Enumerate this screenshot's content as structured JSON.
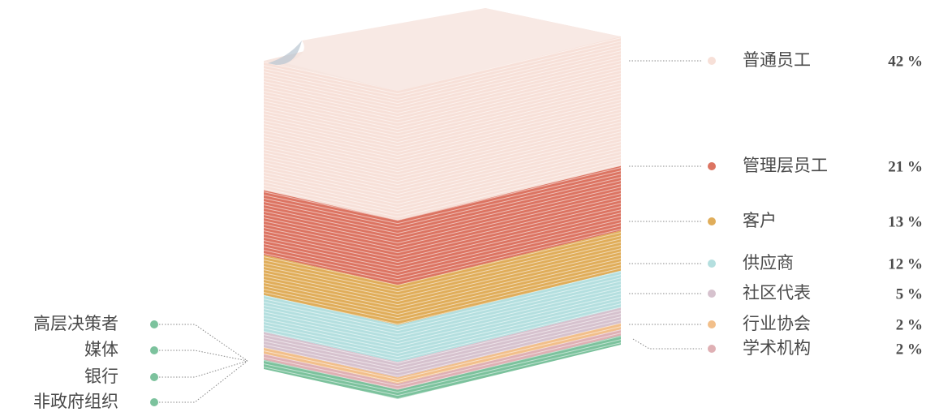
{
  "chart_data": {
    "type": "paper-stack",
    "series": [
      {
        "name": "普通员工",
        "color": "#f7e0d8",
        "values": [
          42
        ],
        "value_labels": [
          "42 %"
        ]
      },
      {
        "name": "管理层员工",
        "color": "#dc7462",
        "values": [
          21
        ],
        "value_labels": [
          "21 %"
        ]
      },
      {
        "name": "客户",
        "color": "#e0ad5a",
        "values": [
          13
        ],
        "value_labels": [
          "13 %"
        ]
      },
      {
        "name": "供应商",
        "color": "#b4dfdf",
        "values": [
          12
        ],
        "value_labels": [
          "12 %"
        ]
      },
      {
        "name": "社区代表",
        "color": "#d6c2ce",
        "values": [
          5
        ],
        "value_labels": [
          "5 %"
        ]
      },
      {
        "name": "行业协会",
        "color": "#f2bf8a",
        "values": [
          2
        ],
        "value_labels": [
          "2 %"
        ]
      },
      {
        "name": "学术机构",
        "color": "#dfb0b4",
        "values": [
          2
        ],
        "value_labels": [
          "2 %"
        ]
      }
    ],
    "others": {
      "labels": [
        "高层决策者",
        "媒体",
        "银行",
        "非政府组织"
      ],
      "color": "#7cc29d",
      "value": 3
    }
  }
}
